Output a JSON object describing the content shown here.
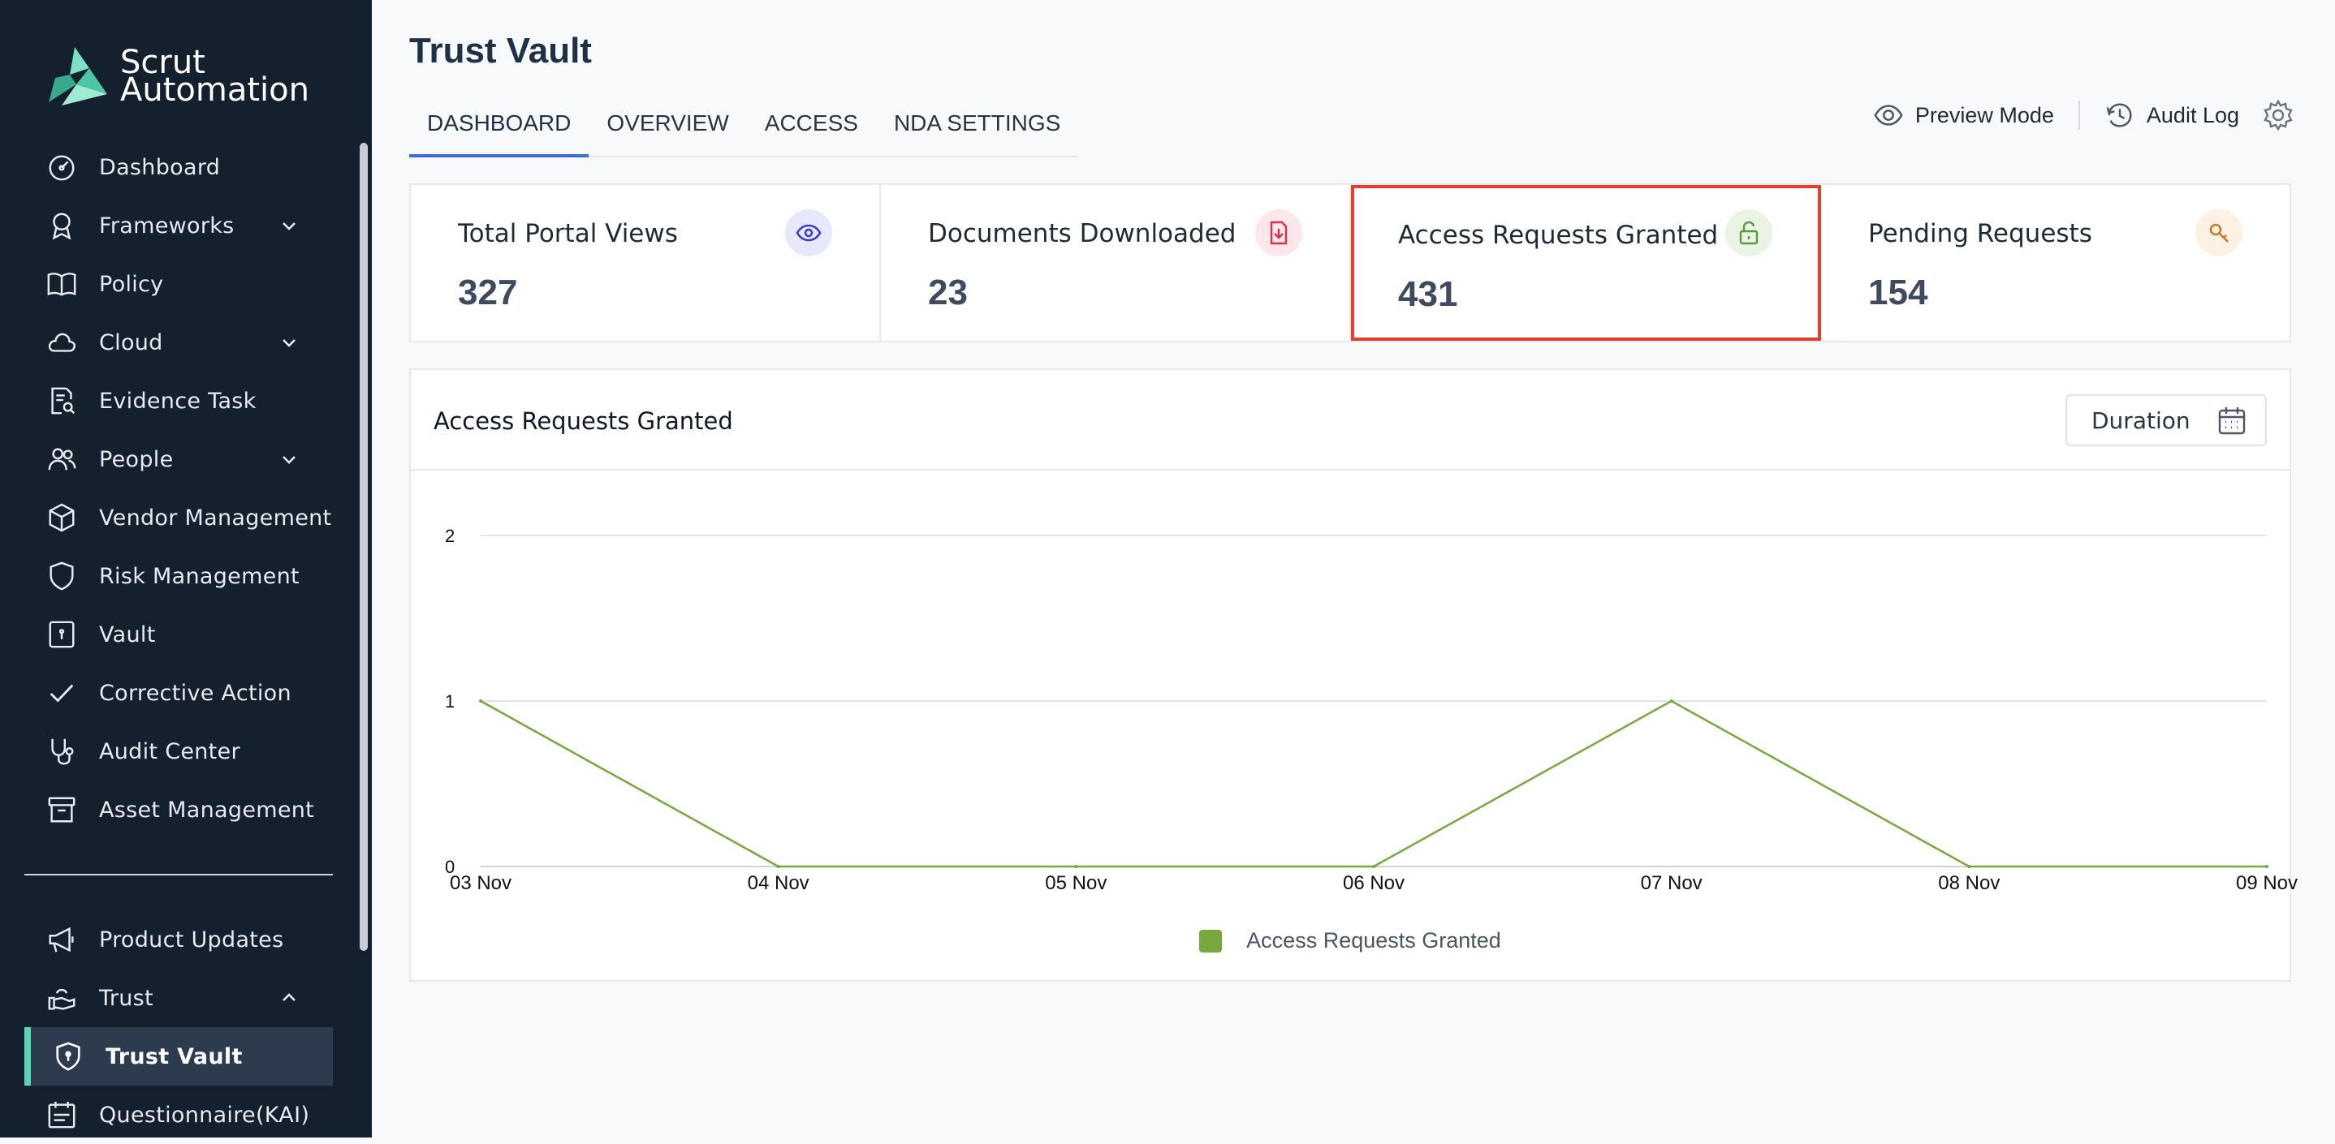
{
  "brand": {
    "line1": "Scrut",
    "line2": "Automation"
  },
  "sidebar": {
    "items": [
      {
        "label": "Dashboard",
        "icon": "dashboard-icon",
        "expandable": false
      },
      {
        "label": "Frameworks",
        "icon": "badge-icon",
        "expandable": true
      },
      {
        "label": "Policy",
        "icon": "book-icon",
        "expandable": false
      },
      {
        "label": "Cloud",
        "icon": "cloud-icon",
        "expandable": true
      },
      {
        "label": "Evidence Task",
        "icon": "document-search-icon",
        "expandable": false
      },
      {
        "label": "People",
        "icon": "people-icon",
        "expandable": true
      },
      {
        "label": "Vendor Management",
        "icon": "box-icon",
        "expandable": false
      },
      {
        "label": "Risk Management",
        "icon": "shield-icon",
        "expandable": false
      },
      {
        "label": "Vault",
        "icon": "vault-icon",
        "expandable": false
      },
      {
        "label": "Corrective Action",
        "icon": "check-icon",
        "expandable": false
      },
      {
        "label": "Audit Center",
        "icon": "stethoscope-icon",
        "expandable": false
      },
      {
        "label": "Asset Management",
        "icon": "archive-icon",
        "expandable": false
      }
    ],
    "secondary": [
      {
        "label": "Product Updates",
        "icon": "megaphone-icon"
      },
      {
        "label": "Trust",
        "icon": "trust-icon",
        "expanded": true
      },
      {
        "label": "Trust Vault",
        "icon": "shield-lock-icon",
        "active": true
      },
      {
        "label": "Questionnaire(KAI)",
        "icon": "calendar-list-icon"
      }
    ]
  },
  "page": {
    "title": "Trust Vault"
  },
  "tabs": [
    "DASHBOARD",
    "OVERVIEW",
    "ACCESS",
    "NDA SETTINGS"
  ],
  "active_tab": "DASHBOARD",
  "actions": {
    "preview": "Preview Mode",
    "audit": "Audit Log"
  },
  "stats": [
    {
      "label": "Total Portal Views",
      "value": "327",
      "icon": "eye-icon",
      "badge_bg": "#e7e8fb",
      "icon_color": "#3f3fb8"
    },
    {
      "label": "Documents Downloaded",
      "value": "23",
      "icon": "download-file-icon",
      "badge_bg": "#fde7ea",
      "icon_color": "#d6334a"
    },
    {
      "label": "Access Requests Granted",
      "value": "431",
      "icon": "unlock-icon",
      "badge_bg": "#e9f4e4",
      "icon_color": "#5a9a3a",
      "highlighted": true
    },
    {
      "label": "Pending Requests",
      "value": "154",
      "icon": "key-search-icon",
      "badge_bg": "#fdf1e4",
      "icon_color": "#c27a2e"
    }
  ],
  "panel": {
    "title": "Access Requests Granted",
    "duration_label": "Duration"
  },
  "chart_data": {
    "type": "line",
    "categories": [
      "03 Nov",
      "04 Nov",
      "05 Nov",
      "06 Nov",
      "07 Nov",
      "08 Nov",
      "09 Nov"
    ],
    "series": [
      {
        "name": "Access Requests Granted",
        "values": [
          1,
          0,
          0,
          0,
          1,
          0,
          0
        ],
        "color": "#77a83d"
      }
    ],
    "yticks": [
      0,
      1,
      2
    ],
    "ylim": [
      0,
      2
    ],
    "grid": true,
    "legend": "bottom"
  }
}
